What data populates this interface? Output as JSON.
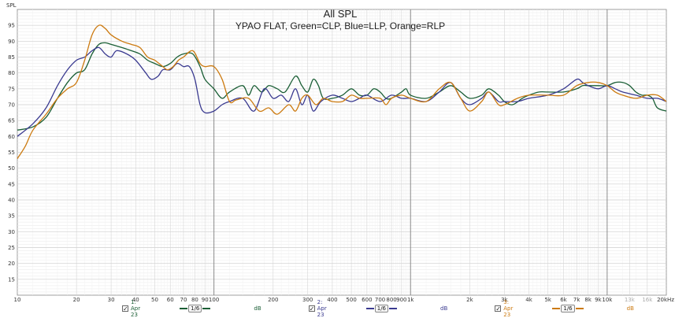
{
  "chart_data": {
    "type": "line",
    "title": "All SPL",
    "subtitle": "YPAO FLAT, Green=CLP, Blue=LLP, Orange=RLP",
    "ylabel": "SPL",
    "xlabel": "",
    "x_scale": "log",
    "xlim": [
      10,
      20000
    ],
    "ylim": [
      10,
      100
    ],
    "grid": true,
    "y_ticks": [
      95,
      90,
      85,
      80,
      75,
      70,
      65,
      60,
      55,
      50,
      45,
      40,
      35,
      30,
      25,
      20,
      15
    ],
    "x_tick_labels": [
      {
        "v": 10,
        "t": "10"
      },
      {
        "v": 20,
        "t": "20"
      },
      {
        "v": 30,
        "t": "30"
      },
      {
        "v": 40,
        "t": "40"
      },
      {
        "v": 50,
        "t": "50"
      },
      {
        "v": 60,
        "t": "60"
      },
      {
        "v": 70,
        "t": "70"
      },
      {
        "v": 80,
        "t": "80"
      },
      {
        "v": 90,
        "t": "90"
      },
      {
        "v": 100,
        "t": "100"
      },
      {
        "v": 200,
        "t": "200"
      },
      {
        "v": 300,
        "t": "300"
      },
      {
        "v": 400,
        "t": "400"
      },
      {
        "v": 500,
        "t": "500"
      },
      {
        "v": 600,
        "t": "600"
      },
      {
        "v": 700,
        "t": "700"
      },
      {
        "v": 800,
        "t": "800"
      },
      {
        "v": 900,
        "t": "900"
      },
      {
        "v": 1000,
        "t": "1k"
      },
      {
        "v": 2000,
        "t": "2k"
      },
      {
        "v": 3000,
        "t": "3k"
      },
      {
        "v": 4000,
        "t": "4k"
      },
      {
        "v": 5000,
        "t": "5k"
      },
      {
        "v": 6000,
        "t": "6k"
      },
      {
        "v": 7000,
        "t": "7k"
      },
      {
        "v": 8000,
        "t": "8k"
      },
      {
        "v": 9000,
        "t": "9k"
      },
      {
        "v": 10000,
        "t": "10k"
      },
      {
        "v": 13000,
        "t": "13k",
        "dim": true
      },
      {
        "v": 16000,
        "t": "16k",
        "dim": true
      },
      {
        "v": 20000,
        "t": "20kHz"
      }
    ],
    "series": [
      {
        "label": "1: Apr 23",
        "color": "#1a5e35",
        "points": [
          [
            10,
            62
          ],
          [
            12,
            63
          ],
          [
            14,
            66
          ],
          [
            16,
            72
          ],
          [
            18,
            77
          ],
          [
            20,
            80
          ],
          [
            22,
            81
          ],
          [
            24,
            86
          ],
          [
            26,
            89
          ],
          [
            28,
            89.5
          ],
          [
            30,
            89
          ],
          [
            34,
            88
          ],
          [
            38,
            87
          ],
          [
            42,
            86
          ],
          [
            46,
            84
          ],
          [
            50,
            83
          ],
          [
            55,
            82
          ],
          [
            60,
            83
          ],
          [
            65,
            85
          ],
          [
            70,
            86
          ],
          [
            78,
            86
          ],
          [
            85,
            82
          ],
          [
            90,
            78
          ],
          [
            100,
            75
          ],
          [
            110,
            72
          ],
          [
            120,
            74
          ],
          [
            140,
            76
          ],
          [
            150,
            73
          ],
          [
            160,
            76
          ],
          [
            175,
            74
          ],
          [
            190,
            76
          ],
          [
            210,
            75
          ],
          [
            230,
            74
          ],
          [
            260,
            79
          ],
          [
            280,
            76
          ],
          [
            300,
            74
          ],
          [
            320,
            78
          ],
          [
            340,
            76
          ],
          [
            360,
            72
          ],
          [
            400,
            72
          ],
          [
            450,
            73
          ],
          [
            500,
            75
          ],
          [
            550,
            73
          ],
          [
            600,
            73
          ],
          [
            650,
            75
          ],
          [
            700,
            74
          ],
          [
            750,
            72
          ],
          [
            800,
            72
          ],
          [
            900,
            74
          ],
          [
            950,
            75
          ],
          [
            1000,
            73
          ],
          [
            1200,
            72
          ],
          [
            1400,
            74
          ],
          [
            1600,
            76
          ],
          [
            1800,
            74
          ],
          [
            2000,
            72
          ],
          [
            2300,
            73
          ],
          [
            2500,
            75
          ],
          [
            2800,
            73
          ],
          [
            3000,
            71
          ],
          [
            3300,
            70
          ],
          [
            3700,
            72
          ],
          [
            4000,
            73
          ],
          [
            4500,
            74
          ],
          [
            5000,
            74
          ],
          [
            6000,
            74
          ],
          [
            7000,
            75
          ],
          [
            7500,
            76
          ],
          [
            8000,
            76
          ],
          [
            9000,
            76
          ],
          [
            10000,
            76
          ],
          [
            11000,
            77
          ],
          [
            12000,
            77
          ],
          [
            13000,
            76
          ],
          [
            14000,
            74
          ],
          [
            15000,
            73
          ],
          [
            16000,
            73
          ],
          [
            17000,
            72
          ],
          [
            18000,
            69
          ],
          [
            20000,
            68
          ]
        ]
      },
      {
        "label": "2: Apr 23",
        "color": "#3a3a90",
        "points": [
          [
            10,
            60
          ],
          [
            12,
            64
          ],
          [
            14,
            69
          ],
          [
            16,
            76
          ],
          [
            18,
            81
          ],
          [
            20,
            84
          ],
          [
            22,
            85
          ],
          [
            24,
            87
          ],
          [
            26,
            88
          ],
          [
            28,
            86
          ],
          [
            30,
            85
          ],
          [
            32,
            87
          ],
          [
            36,
            86
          ],
          [
            40,
            84
          ],
          [
            45,
            80
          ],
          [
            48,
            78
          ],
          [
            52,
            79
          ],
          [
            55,
            81
          ],
          [
            60,
            81
          ],
          [
            65,
            83
          ],
          [
            70,
            82
          ],
          [
            75,
            82
          ],
          [
            80,
            78
          ],
          [
            85,
            70
          ],
          [
            90,
            67.5
          ],
          [
            100,
            68
          ],
          [
            110,
            70
          ],
          [
            120,
            71
          ],
          [
            140,
            72
          ],
          [
            160,
            68
          ],
          [
            180,
            75
          ],
          [
            200,
            72
          ],
          [
            220,
            73
          ],
          [
            240,
            71
          ],
          [
            260,
            75
          ],
          [
            280,
            70
          ],
          [
            300,
            73
          ],
          [
            320,
            68
          ],
          [
            350,
            71
          ],
          [
            400,
            73
          ],
          [
            450,
            72
          ],
          [
            500,
            71
          ],
          [
            550,
            72
          ],
          [
            600,
            73
          ],
          [
            700,
            71
          ],
          [
            800,
            73
          ],
          [
            900,
            72
          ],
          [
            1000,
            72
          ],
          [
            1200,
            71
          ],
          [
            1400,
            74
          ],
          [
            1600,
            77
          ],
          [
            1800,
            72
          ],
          [
            2000,
            70
          ],
          [
            2300,
            72
          ],
          [
            2500,
            74
          ],
          [
            2800,
            71
          ],
          [
            3000,
            71
          ],
          [
            3500,
            71
          ],
          [
            4000,
            72
          ],
          [
            5000,
            73
          ],
          [
            6000,
            75
          ],
          [
            7000,
            78
          ],
          [
            7500,
            77
          ],
          [
            8000,
            76
          ],
          [
            9000,
            75
          ],
          [
            10000,
            76
          ],
          [
            11000,
            75
          ],
          [
            12000,
            74
          ],
          [
            14000,
            73
          ],
          [
            16000,
            72
          ],
          [
            18000,
            72
          ],
          [
            20000,
            71
          ]
        ]
      },
      {
        "label": "3: Apr 23",
        "color": "#cc7a10",
        "points": [
          [
            10,
            53
          ],
          [
            11,
            57
          ],
          [
            12,
            62
          ],
          [
            14,
            67
          ],
          [
            16,
            72
          ],
          [
            18,
            75
          ],
          [
            20,
            77
          ],
          [
            22,
            84
          ],
          [
            24,
            92
          ],
          [
            26,
            95
          ],
          [
            28,
            94
          ],
          [
            30,
            92
          ],
          [
            34,
            90
          ],
          [
            38,
            89
          ],
          [
            42,
            88
          ],
          [
            46,
            85
          ],
          [
            50,
            84
          ],
          [
            55,
            82
          ],
          [
            58,
            81
          ],
          [
            62,
            82
          ],
          [
            66,
            84
          ],
          [
            70,
            85
          ],
          [
            78,
            87
          ],
          [
            85,
            83
          ],
          [
            90,
            82
          ],
          [
            100,
            82
          ],
          [
            110,
            78
          ],
          [
            120,
            71
          ],
          [
            130,
            71.5
          ],
          [
            150,
            72
          ],
          [
            170,
            68
          ],
          [
            190,
            69
          ],
          [
            210,
            67
          ],
          [
            240,
            70
          ],
          [
            260,
            68
          ],
          [
            280,
            72
          ],
          [
            300,
            73
          ],
          [
            330,
            70
          ],
          [
            360,
            72
          ],
          [
            400,
            71
          ],
          [
            450,
            71
          ],
          [
            500,
            73
          ],
          [
            550,
            72
          ],
          [
            600,
            72
          ],
          [
            700,
            72
          ],
          [
            750,
            70
          ],
          [
            800,
            72
          ],
          [
            900,
            73
          ],
          [
            1000,
            72
          ],
          [
            1200,
            71
          ],
          [
            1400,
            75
          ],
          [
            1600,
            77
          ],
          [
            1800,
            72
          ],
          [
            2000,
            68
          ],
          [
            2300,
            71
          ],
          [
            2500,
            74
          ],
          [
            2800,
            70
          ],
          [
            3000,
            70
          ],
          [
            3500,
            72
          ],
          [
            4000,
            73
          ],
          [
            5000,
            73
          ],
          [
            6000,
            73
          ],
          [
            7000,
            76
          ],
          [
            8000,
            77
          ],
          [
            9000,
            77
          ],
          [
            10000,
            76
          ],
          [
            11000,
            74
          ],
          [
            12000,
            73
          ],
          [
            14000,
            72
          ],
          [
            16000,
            73
          ],
          [
            18000,
            73
          ],
          [
            20000,
            71
          ]
        ]
      }
    ]
  },
  "legend": {
    "items": [
      {
        "checked": "✓",
        "name": "1: Apr 23",
        "smoothing": "1/6",
        "unit": "dB"
      },
      {
        "checked": "✓",
        "name": "2: Apr 23",
        "smoothing": "1/6",
        "unit": "dB"
      },
      {
        "checked": "✓",
        "name": "3: Apr 23",
        "smoothing": "1/6",
        "unit": "dB"
      }
    ]
  }
}
